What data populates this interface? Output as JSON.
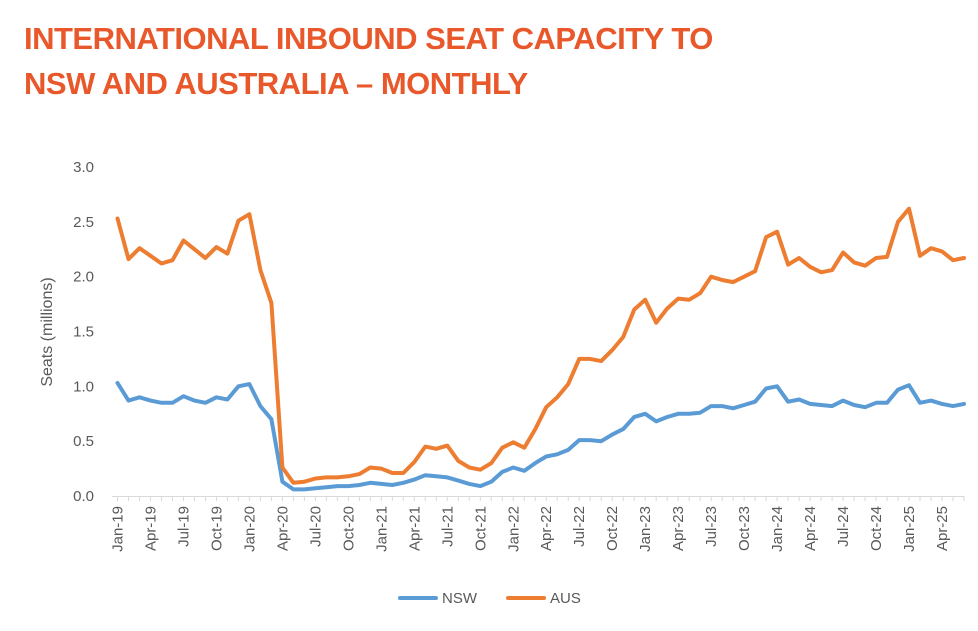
{
  "header": {
    "title_line1": "INTERNATIONAL INBOUND SEAT CAPACITY TO",
    "title_line2": "NSW AND AUSTRALIA – MONTHLY"
  },
  "chart_data": {
    "type": "line",
    "title": "INTERNATIONAL INBOUND SEAT CAPACITY TO NSW AND AUSTRALIA – MONTHLY",
    "xlabel": "",
    "ylabel": "Seats (millions)",
    "ylim": [
      0,
      3.0
    ],
    "yticks": [
      "0.0",
      "0.5",
      "1.0",
      "1.5",
      "2.0",
      "2.5",
      "3.0"
    ],
    "grid": false,
    "legend_position": "bottom-center",
    "x": [
      "Jan-19",
      "Feb-19",
      "Mar-19",
      "Apr-19",
      "May-19",
      "Jun-19",
      "Jul-19",
      "Aug-19",
      "Sep-19",
      "Oct-19",
      "Nov-19",
      "Dec-19",
      "Jan-20",
      "Feb-20",
      "Mar-20",
      "Apr-20",
      "May-20",
      "Jun-20",
      "Jul-20",
      "Aug-20",
      "Sep-20",
      "Oct-20",
      "Nov-20",
      "Dec-20",
      "Jan-21",
      "Feb-21",
      "Mar-21",
      "Apr-21",
      "May-21",
      "Jun-21",
      "Jul-21",
      "Aug-21",
      "Sep-21",
      "Oct-21",
      "Nov-21",
      "Dec-21",
      "Jan-22",
      "Feb-22",
      "Mar-22",
      "Apr-22",
      "May-22",
      "Jun-22",
      "Jul-22",
      "Aug-22",
      "Sep-22",
      "Oct-22",
      "Nov-22",
      "Dec-22",
      "Jan-23",
      "Feb-23",
      "Mar-23",
      "Apr-23",
      "May-23",
      "Jun-23",
      "Jul-23",
      "Aug-23",
      "Sep-23",
      "Oct-23",
      "Nov-23",
      "Dec-23",
      "Jan-24",
      "Feb-24",
      "Mar-24",
      "Apr-24",
      "May-24",
      "Jun-24",
      "Jul-24",
      "Aug-24",
      "Sep-24",
      "Oct-24",
      "Nov-24",
      "Dec-24",
      "Jan-25",
      "Feb-25",
      "Mar-25",
      "Apr-25",
      "May-25",
      "Jun-25"
    ],
    "x_tick_labels": [
      "Jan-19",
      "Apr-19",
      "Jul-19",
      "Oct-19",
      "Jan-20",
      "Apr-20",
      "Jul-20",
      "Oct-20",
      "Jan-21",
      "Apr-21",
      "Jul-21",
      "Oct-21",
      "Jan-22",
      "Apr-22",
      "Jul-22",
      "Oct-22",
      "Jan-23",
      "Apr-23",
      "Jul-23",
      "Oct-23",
      "Jan-24",
      "Apr-24",
      "Jul-24",
      "Oct-24",
      "Jan-25",
      "Apr-25"
    ],
    "series": [
      {
        "name": "NSW",
        "color": "#5b9bd5",
        "values": [
          1.03,
          0.87,
          0.9,
          0.87,
          0.85,
          0.85,
          0.91,
          0.87,
          0.85,
          0.9,
          0.88,
          1.0,
          1.02,
          0.82,
          0.7,
          0.13,
          0.06,
          0.06,
          0.07,
          0.08,
          0.09,
          0.09,
          0.1,
          0.12,
          0.11,
          0.1,
          0.12,
          0.15,
          0.19,
          0.18,
          0.17,
          0.14,
          0.11,
          0.09,
          0.13,
          0.22,
          0.26,
          0.23,
          0.3,
          0.36,
          0.38,
          0.42,
          0.51,
          0.51,
          0.5,
          0.56,
          0.61,
          0.72,
          0.75,
          0.68,
          0.72,
          0.75,
          0.75,
          0.76,
          0.82,
          0.82,
          0.8,
          0.83,
          0.86,
          0.98,
          1.0,
          0.86,
          0.88,
          0.84,
          0.83,
          0.82,
          0.87,
          0.83,
          0.81,
          0.85,
          0.85,
          0.97,
          1.01,
          0.85,
          0.87,
          0.84,
          0.82,
          0.84
        ]
      },
      {
        "name": "AUS",
        "color": "#ed7d31",
        "values": [
          2.53,
          2.16,
          2.26,
          2.19,
          2.12,
          2.15,
          2.33,
          2.25,
          2.17,
          2.27,
          2.21,
          2.51,
          2.57,
          2.06,
          1.76,
          0.26,
          0.12,
          0.13,
          0.16,
          0.17,
          0.17,
          0.18,
          0.2,
          0.26,
          0.25,
          0.21,
          0.21,
          0.31,
          0.45,
          0.43,
          0.46,
          0.32,
          0.26,
          0.24,
          0.3,
          0.44,
          0.49,
          0.44,
          0.61,
          0.81,
          0.9,
          1.02,
          1.25,
          1.25,
          1.23,
          1.33,
          1.45,
          1.7,
          1.79,
          1.58,
          1.71,
          1.8,
          1.79,
          1.85,
          2.0,
          1.97,
          1.95,
          2.0,
          2.05,
          2.36,
          2.41,
          2.11,
          2.17,
          2.09,
          2.04,
          2.06,
          2.22,
          2.13,
          2.1,
          2.17,
          2.18,
          2.5,
          2.62,
          2.19,
          2.26,
          2.23,
          2.15,
          2.17
        ]
      }
    ]
  }
}
